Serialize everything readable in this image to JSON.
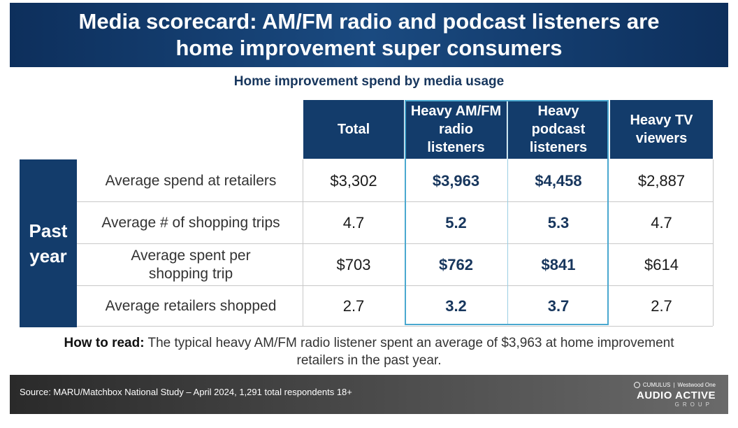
{
  "title": {
    "line1": "Media scorecard: AM/FM radio and podcast listeners are",
    "line2": "home improvement super consumers"
  },
  "subtitle": "Home improvement spend by media usage",
  "table": {
    "columns": [
      "Total",
      "Heavy AM/FM radio listeners",
      "Heavy podcast listeners",
      "Heavy TV viewers"
    ],
    "row_group_label_1": "Past",
    "row_group_label_2": "year",
    "rows": [
      {
        "label": "Average spend at retailers",
        "values": [
          "$3,302",
          "$3,963",
          "$4,458",
          "$2,887"
        ]
      },
      {
        "label": "Average # of shopping trips",
        "values": [
          "4.7",
          "5.2",
          "5.3",
          "4.7"
        ]
      },
      {
        "label_line1": "Average spent per",
        "label_line2": "shopping trip",
        "values": [
          "$703",
          "$762",
          "$841",
          "$614"
        ]
      },
      {
        "label": "Average retailers shopped",
        "values": [
          "2.7",
          "3.2",
          "3.7",
          "2.7"
        ]
      }
    ]
  },
  "note": {
    "lead": "How to read:",
    "text": " The typical heavy AM/FM radio listener spent an average of $3,963 at home improvement retailers in the past year."
  },
  "footer": {
    "source": "Source: MARU/Matchbox National Study – April 2024, 1,291 total respondents 18+",
    "brand_small_1": "CUMULUS",
    "brand_small_2": "Westwood One",
    "brand_main": "AUDIO ACTIVE",
    "brand_sub": "GROUP"
  },
  "colors": {
    "navy": "#133c6b",
    "highlight_border": "#4aa8cf",
    "highlight_text": "#17365d"
  }
}
